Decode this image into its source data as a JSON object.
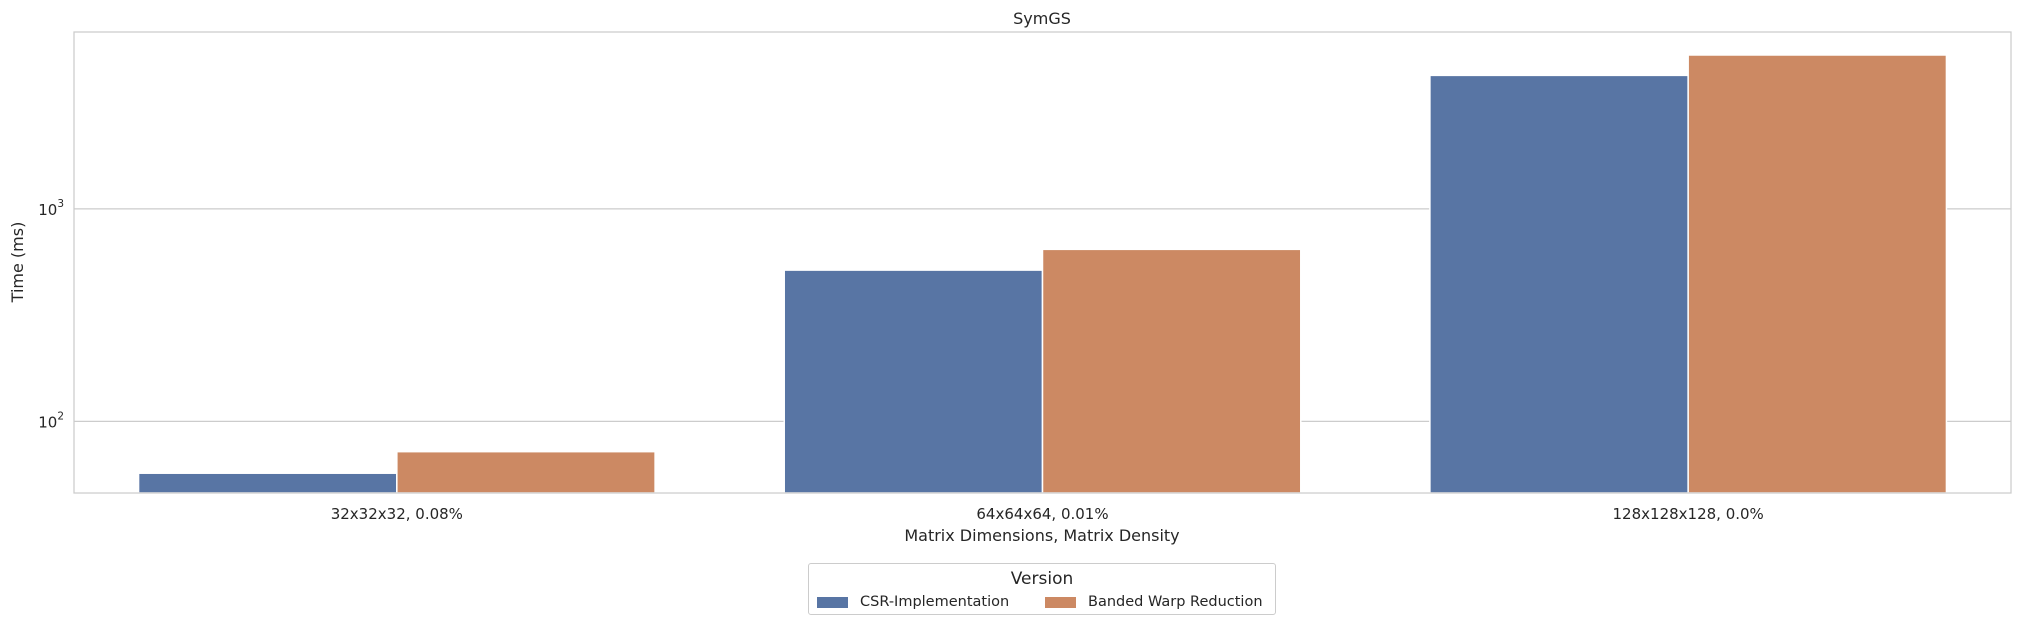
{
  "chart_data": {
    "type": "bar",
    "title": "SymGS",
    "xlabel": "Matrix Dimensions, Matrix Density",
    "ylabel": "Time (ms)",
    "yscale": "log",
    "ylim": [
      46,
      6800
    ],
    "yticks": [
      {
        "value": 100,
        "base": "10",
        "exp": "2"
      },
      {
        "value": 1000,
        "base": "10",
        "exp": "3"
      }
    ],
    "categories": [
      "32x32x32, 0.08%",
      "64x64x64, 0.01%",
      "128x128x128, 0.0%"
    ],
    "series": [
      {
        "name": "CSR-Implementation",
        "color": "#5875a4",
        "values": [
          57,
          515,
          4250
        ]
      },
      {
        "name": "Banded Warp Reduction",
        "color": "#cc8963",
        "values": [
          72,
          645,
          5300
        ]
      }
    ],
    "grid": true,
    "legend": {
      "title": "Version",
      "position": "bottom-center"
    }
  }
}
